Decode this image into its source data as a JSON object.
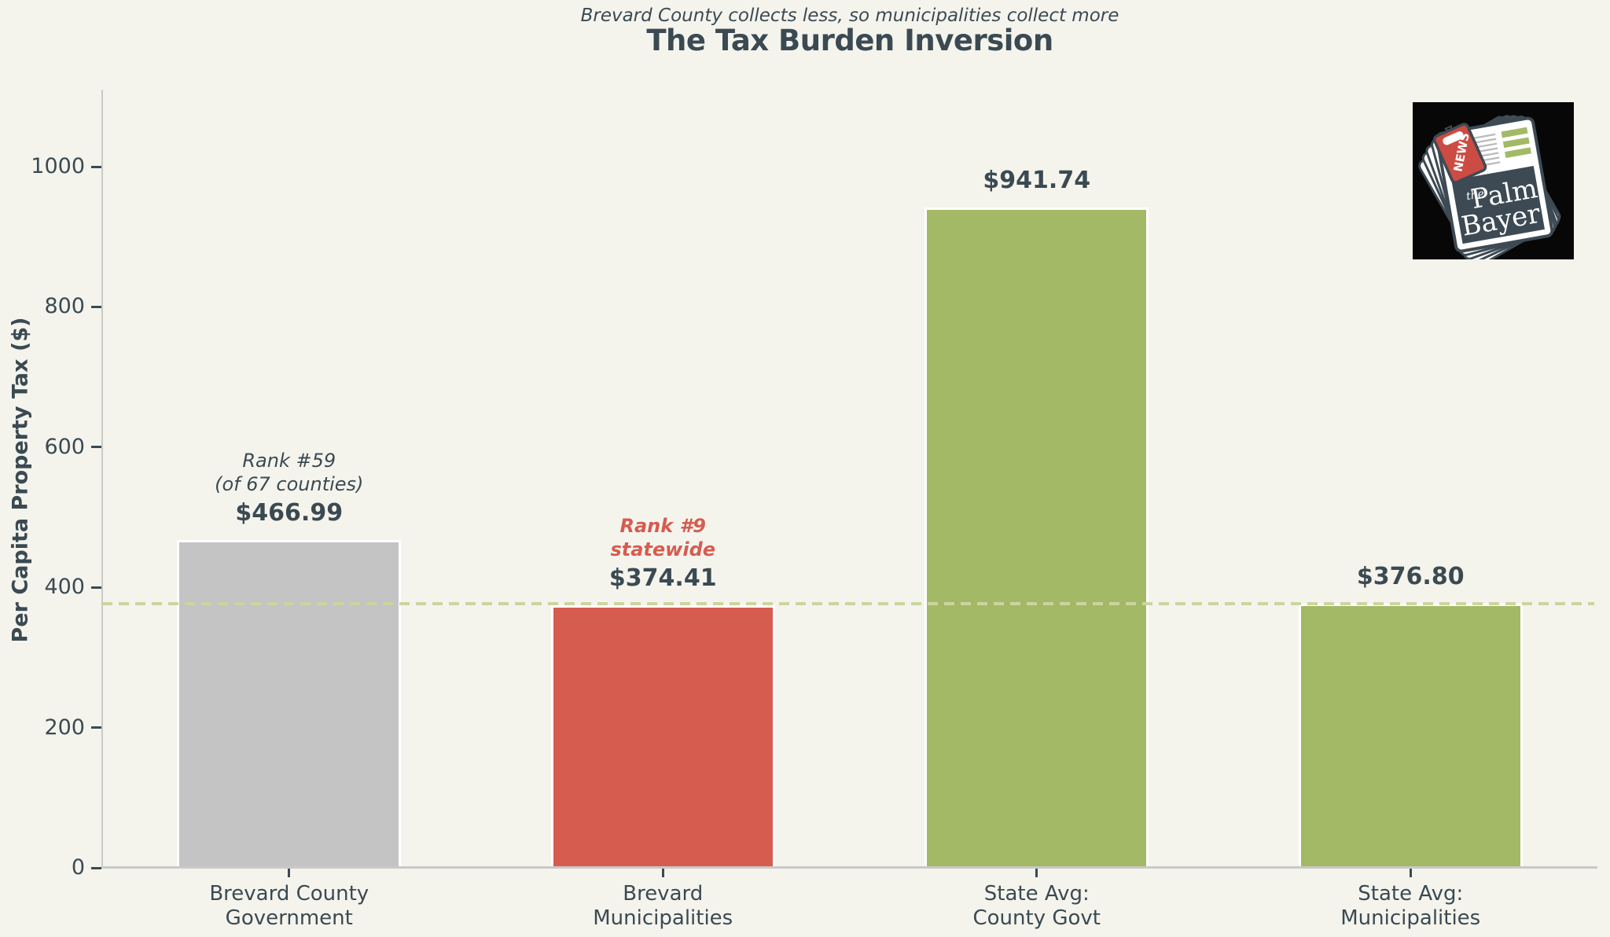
{
  "chart_data": {
    "type": "bar",
    "title": "The Tax Burden Inversion",
    "subtitle": "Brevard County collects less, so municipalities collect more",
    "ylabel": "Per Capita Property Tax ($)",
    "xlabel": "",
    "ylim": [
      0,
      1110
    ],
    "yticks": [
      0,
      200,
      400,
      600,
      800,
      1000
    ],
    "grid": false,
    "legend": false,
    "categories": [
      "Brevard County\nGovernment",
      "Brevard\nMunicipalities",
      "State Avg:\nCounty Govt",
      "State Avg:\nMunicipalities"
    ],
    "values": [
      466.99,
      374.41,
      941.74,
      376.8
    ],
    "value_labels": [
      "$466.99",
      "$374.41",
      "$941.74",
      "$376.80"
    ],
    "bar_colors": [
      "#c4c4c4",
      "#d65c50",
      "#a3b966",
      "#a3b966"
    ],
    "bar_edge_color": "#ffffff",
    "annotations": [
      {
        "bar": 0,
        "text": "Rank #59\n(of 67 counties)",
        "color": "#3b4a52",
        "bold": false
      },
      {
        "bar": 1,
        "text": "Rank #9\nstatewide",
        "color": "#d65c50",
        "bold": true
      }
    ],
    "reference_line": {
      "value": 376.8,
      "color": "#ccd59d",
      "style": "dashed"
    }
  },
  "colors": {
    "background": "#f4f4ed",
    "axis": "#c9c9c6",
    "text_dark": "#3b4a52",
    "accent_red": "#d65c50",
    "accent_green": "#a3b966"
  },
  "logo": {
    "word_the": "the",
    "word_palm": "Palm",
    "word_bayer": "Bayer",
    "tag": "NEWS"
  }
}
